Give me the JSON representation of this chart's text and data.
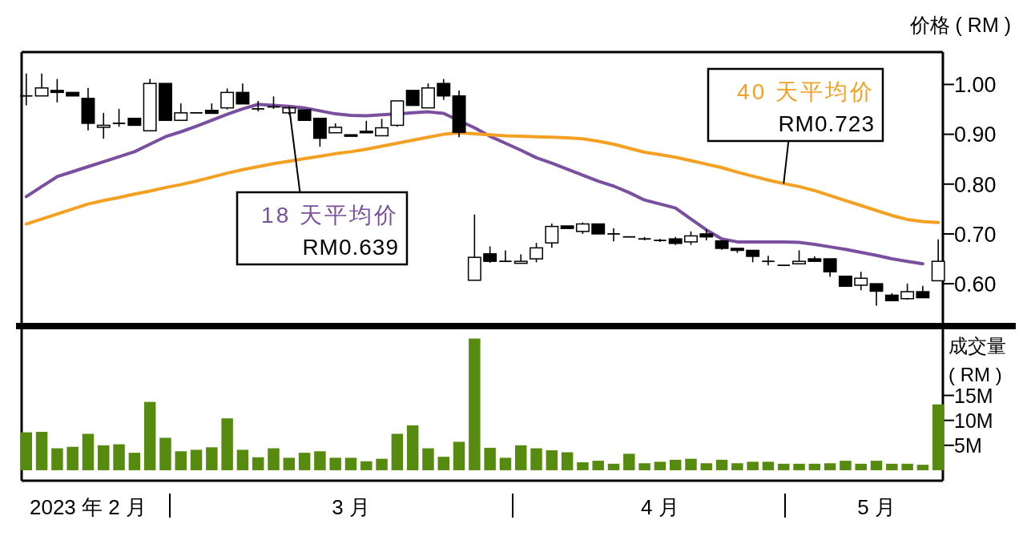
{
  "chart_data": [
    {
      "type": "candlestick",
      "ylabel": "价格 ( RM )",
      "tick_labels": "y",
      "categories": [
        null,
        null,
        null,
        null,
        null,
        null,
        null,
        null,
        null,
        null,
        null,
        null,
        null,
        null,
        null,
        null,
        null,
        null,
        null,
        null,
        null,
        null,
        null,
        null,
        null,
        null,
        null,
        null,
        null,
        null,
        null,
        null,
        null,
        null,
        null,
        null,
        null,
        null,
        null,
        null,
        null,
        null,
        null,
        null,
        null,
        null,
        null,
        null,
        null,
        null,
        null,
        null,
        null,
        null,
        null,
        null,
        null,
        null,
        null,
        null
      ],
      "ylim": [
        0.515,
        1.065
      ],
      "yticks": [
        {
          "value": 0.6,
          "label": "0.60"
        },
        {
          "value": 0.7,
          "label": "0.70"
        },
        {
          "value": 0.8,
          "label": "0.80"
        },
        {
          "value": 0.9,
          "label": "0.90"
        },
        {
          "value": 1.0,
          "label": "1.00"
        }
      ],
      "ohlc": [
        [
          0.977,
          1.022,
          0.958,
          0.977
        ],
        [
          0.977,
          1.022,
          0.977,
          0.993
        ],
        [
          0.988,
          1.011,
          0.964,
          0.984
        ],
        [
          0.984,
          0.984,
          0.977,
          0.977
        ],
        [
          0.972,
          0.993,
          0.908,
          0.922
        ],
        [
          0.914,
          0.943,
          0.891,
          0.918
        ],
        [
          0.922,
          0.951,
          0.915,
          0.922
        ],
        [
          0.932,
          0.932,
          0.918,
          0.918
        ],
        [
          0.907,
          1.011,
          0.907,
          1.002
        ],
        [
          1.002,
          1.002,
          0.928,
          0.928
        ],
        [
          0.928,
          0.962,
          0.928,
          0.943
        ],
        [
          0.943,
          0.943,
          0.943,
          0.943
        ],
        [
          0.948,
          0.962,
          0.942,
          0.942
        ],
        [
          0.953,
          0.992,
          0.95,
          0.984
        ],
        [
          0.984,
          1.002,
          0.961,
          0.961
        ],
        [
          0.951,
          0.967,
          0.946,
          0.951
        ],
        [
          0.955,
          0.976,
          0.951,
          0.955
        ],
        [
          0.943,
          0.953,
          0.939,
          0.953
        ],
        [
          0.949,
          0.949,
          0.928,
          0.928
        ],
        [
          0.932,
          0.932,
          0.875,
          0.892
        ],
        [
          0.903,
          0.922,
          0.903,
          0.914
        ],
        [
          0.899,
          0.899,
          0.896,
          0.896
        ],
        [
          0.906,
          0.927,
          0.903,
          0.903
        ],
        [
          0.897,
          0.931,
          0.897,
          0.913
        ],
        [
          0.918,
          0.967,
          0.915,
          0.967
        ],
        [
          0.988,
          0.988,
          0.958,
          0.958
        ],
        [
          0.953,
          1.002,
          0.953,
          0.993
        ],
        [
          1.002,
          1.011,
          0.969,
          0.977
        ],
        [
          0.977,
          0.988,
          0.894,
          0.904
        ],
        [
          0.607,
          0.739,
          0.607,
          0.653
        ],
        [
          0.66,
          0.675,
          0.642,
          0.645
        ],
        [
          0.645,
          0.667,
          0.644,
          0.645
        ],
        [
          0.641,
          0.659,
          0.641,
          0.645
        ],
        [
          0.65,
          0.682,
          0.643,
          0.672
        ],
        [
          0.682,
          0.721,
          0.672,
          0.715
        ],
        [
          0.716,
          0.716,
          0.711,
          0.711
        ],
        [
          0.705,
          0.723,
          0.7,
          0.72
        ],
        [
          0.72,
          0.72,
          0.7,
          0.7
        ],
        [
          0.7,
          0.711,
          0.685,
          0.7
        ],
        [
          0.694,
          0.694,
          0.694,
          0.694
        ],
        [
          0.69,
          0.694,
          0.687,
          0.69
        ],
        [
          0.687,
          0.69,
          0.684,
          0.687
        ],
        [
          0.69,
          0.694,
          0.678,
          0.681
        ],
        [
          0.684,
          0.705,
          0.678,
          0.696
        ],
        [
          0.7,
          0.709,
          0.687,
          0.694
        ],
        [
          0.686,
          0.686,
          0.668,
          0.671
        ],
        [
          0.671,
          0.671,
          0.662,
          0.667
        ],
        [
          0.667,
          0.667,
          0.643,
          0.655
        ],
        [
          0.645,
          0.656,
          0.637,
          0.645
        ],
        [
          0.637,
          0.637,
          0.637,
          0.637
        ],
        [
          0.64,
          0.667,
          0.64,
          0.645
        ],
        [
          0.65,
          0.655,
          0.645,
          0.645
        ],
        [
          0.65,
          0.65,
          0.614,
          0.624
        ],
        [
          0.615,
          0.615,
          0.595,
          0.595
        ],
        [
          0.597,
          0.624,
          0.587,
          0.611
        ],
        [
          0.6,
          0.6,
          0.556,
          0.585
        ],
        [
          0.577,
          0.581,
          0.566,
          0.566
        ],
        [
          0.57,
          0.6,
          0.568,
          0.584
        ],
        [
          0.584,
          0.596,
          0.572,
          0.572
        ],
        [
          0.606,
          0.689,
          0.606,
          0.645
        ]
      ],
      "series": [
        {
          "name": "18 天平均价",
          "type": "line",
          "color": "#7a4f9f",
          "values": [
            0.775,
            0.795,
            0.815,
            0.825,
            0.835,
            0.845,
            0.855,
            0.865,
            0.88,
            0.895,
            0.905,
            0.916,
            0.928,
            0.94,
            0.951,
            0.96,
            0.958,
            0.956,
            0.953,
            0.947,
            0.941,
            0.938,
            0.937,
            0.939,
            null,
            0.943,
            0.945,
            0.942,
            null,
            0.913,
            0.896,
            0.882,
            0.868,
            0.853,
            0.842,
            0.83,
            0.818,
            0.806,
            0.796,
            0.783,
            0.768,
            0.76,
            0.752,
            0.73,
            0.708,
            0.69,
            0.684,
            0.684,
            0.684,
            0.684,
            0.683,
            0.679,
            0.674,
            0.669,
            0.663,
            0.657,
            0.65,
            0.645,
            0.64,
            null
          ]
        },
        {
          "name": "40 天平均价",
          "type": "line",
          "color": "#f4a023",
          "values": [
            0.72,
            0.73,
            0.74,
            0.75,
            0.76,
            0.767,
            0.773,
            0.78,
            0.786,
            0.793,
            0.799,
            0.806,
            0.814,
            0.822,
            0.829,
            0.835,
            0.841,
            0.846,
            0.851,
            0.856,
            0.861,
            0.865,
            0.87,
            0.876,
            0.882,
            0.888,
            0.894,
            0.9,
            0.903,
            0.901,
            0.899,
            0.897,
            0.896,
            0.895,
            0.894,
            0.893,
            0.891,
            0.886,
            0.88,
            0.872,
            0.864,
            0.859,
            0.854,
            0.847,
            0.84,
            0.833,
            0.824,
            0.816,
            0.808,
            0.801,
            0.795,
            0.787,
            0.777,
            0.767,
            0.757,
            0.747,
            0.737,
            0.729,
            0.725,
            0.723
          ]
        }
      ],
      "annotations": [
        "RM0.639",
        "RM0.723"
      ]
    },
    {
      "type": "bar",
      "ylabel": "成交量 ( RM )",
      "color": "#578b0f",
      "categories": [
        null,
        null,
        null,
        null,
        "2023 年 2 月",
        null,
        null,
        null,
        null,
        null,
        null,
        null,
        null,
        null,
        null,
        null,
        null,
        null,
        null,
        null,
        null,
        "3 月",
        null,
        null,
        null,
        null,
        null,
        null,
        null,
        null,
        null,
        null,
        null,
        null,
        null,
        null,
        null,
        null,
        null,
        null,
        null,
        "4 月",
        null,
        null,
        null,
        null,
        null,
        null,
        null,
        null,
        null,
        null,
        null,
        null,
        null,
        "5 月",
        null,
        null,
        null,
        null
      ],
      "values": [
        7.6,
        7.7,
        4.4,
        4.7,
        7.3,
        5.0,
        5.2,
        3.5,
        13.7,
        6.5,
        3.8,
        4.1,
        4.6,
        10.4,
        4.1,
        2.6,
        4.4,
        2.5,
        3.5,
        3.8,
        2.5,
        2.5,
        1.8,
        2.3,
        7.3,
        9.0,
        4.4,
        2.7,
        5.7,
        26.4,
        4.5,
        2.5,
        5.0,
        4.4,
        4.0,
        3.6,
        1.6,
        1.9,
        1.3,
        3.3,
        1.4,
        1.7,
        2.1,
        2.3,
        1.4,
        2.1,
        1.4,
        1.7,
        1.7,
        1.3,
        1.3,
        1.3,
        1.4,
        1.9,
        1.3,
        1.9,
        1.3,
        1.3,
        1.1,
        13.2
      ],
      "ylim": [
        -2.1,
        28.9
      ],
      "yticks": [
        {
          "value": 5,
          "label": "5M"
        },
        {
          "value": 10,
          "label": "10M"
        },
        {
          "value": 15,
          "label": "15M"
        }
      ]
    }
  ]
}
